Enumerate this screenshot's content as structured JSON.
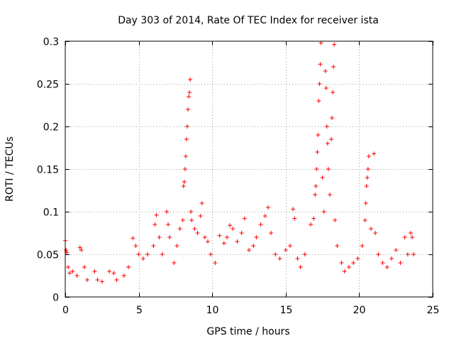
{
  "chart_data": {
    "type": "scatter",
    "title": "Day 303 of 2014, Rate Of TEC Index for receiver ista",
    "xlabel": "GPS time / hours",
    "ylabel": "ROTI / TECUs",
    "xlim": [
      0,
      25
    ],
    "ylim": [
      0,
      0.3
    ],
    "xticks": [
      0,
      5,
      10,
      15,
      20,
      25
    ],
    "xtick_labels": [
      "0",
      "5",
      "10",
      "15",
      "20",
      "25"
    ],
    "yticks": [
      0,
      0.05,
      0.1,
      0.15,
      0.2,
      0.25,
      0.3
    ],
    "ytick_labels": [
      "0",
      "0.05",
      "0.1",
      "0.15",
      "0.2",
      "0.25",
      "0.3"
    ],
    "grid": true,
    "marker": "+",
    "color": "#ff0000",
    "series": [
      {
        "name": "ROTI",
        "points": [
          [
            0.0,
            0.066
          ],
          [
            0.05,
            0.055
          ],
          [
            0.1,
            0.052
          ],
          [
            0.2,
            0.035
          ],
          [
            0.3,
            0.028
          ],
          [
            0.5,
            0.03
          ],
          [
            0.8,
            0.025
          ],
          [
            1.0,
            0.058
          ],
          [
            1.1,
            0.055
          ],
          [
            1.3,
            0.035
          ],
          [
            1.5,
            0.02
          ],
          [
            2.0,
            0.03
          ],
          [
            2.2,
            0.02
          ],
          [
            2.5,
            0.018
          ],
          [
            3.0,
            0.03
          ],
          [
            3.3,
            0.028
          ],
          [
            3.5,
            0.02
          ],
          [
            4.0,
            0.025
          ],
          [
            4.3,
            0.035
          ],
          [
            4.6,
            0.069
          ],
          [
            4.8,
            0.06
          ],
          [
            5.0,
            0.05
          ],
          [
            5.3,
            0.045
          ],
          [
            5.6,
            0.05
          ],
          [
            6.0,
            0.06
          ],
          [
            6.1,
            0.085
          ],
          [
            6.2,
            0.096
          ],
          [
            6.4,
            0.07
          ],
          [
            6.6,
            0.05
          ],
          [
            6.9,
            0.1
          ],
          [
            7.0,
            0.085
          ],
          [
            7.1,
            0.07
          ],
          [
            7.4,
            0.04
          ],
          [
            7.6,
            0.06
          ],
          [
            7.8,
            0.08
          ],
          [
            8.0,
            0.09
          ],
          [
            8.05,
            0.13
          ],
          [
            8.1,
            0.135
          ],
          [
            8.15,
            0.15
          ],
          [
            8.2,
            0.165
          ],
          [
            8.25,
            0.185
          ],
          [
            8.3,
            0.2
          ],
          [
            8.35,
            0.22
          ],
          [
            8.4,
            0.235
          ],
          [
            8.45,
            0.24
          ],
          [
            8.5,
            0.255
          ],
          [
            8.55,
            0.1
          ],
          [
            8.6,
            0.09
          ],
          [
            8.8,
            0.08
          ],
          [
            9.0,
            0.075
          ],
          [
            9.2,
            0.095
          ],
          [
            9.3,
            0.11
          ],
          [
            9.5,
            0.07
          ],
          [
            9.7,
            0.065
          ],
          [
            9.9,
            0.05
          ],
          [
            10.2,
            0.04
          ],
          [
            10.5,
            0.072
          ],
          [
            10.8,
            0.063
          ],
          [
            11.0,
            0.07
          ],
          [
            11.2,
            0.084
          ],
          [
            11.4,
            0.08
          ],
          [
            11.7,
            0.065
          ],
          [
            12.0,
            0.075
          ],
          [
            12.2,
            0.092
          ],
          [
            12.5,
            0.055
          ],
          [
            12.8,
            0.06
          ],
          [
            13.0,
            0.07
          ],
          [
            13.3,
            0.085
          ],
          [
            13.6,
            0.095
          ],
          [
            13.8,
            0.105
          ],
          [
            14.0,
            0.075
          ],
          [
            14.3,
            0.05
          ],
          [
            14.6,
            0.045
          ],
          [
            15.0,
            0.055
          ],
          [
            15.3,
            0.06
          ],
          [
            15.5,
            0.103
          ],
          [
            15.6,
            0.092
          ],
          [
            15.8,
            0.045
          ],
          [
            16.0,
            0.035
          ],
          [
            16.3,
            0.05
          ],
          [
            16.7,
            0.085
          ],
          [
            16.9,
            0.092
          ],
          [
            17.0,
            0.12
          ],
          [
            17.05,
            0.13
          ],
          [
            17.1,
            0.15
          ],
          [
            17.15,
            0.17
          ],
          [
            17.2,
            0.19
          ],
          [
            17.25,
            0.23
          ],
          [
            17.3,
            0.25
          ],
          [
            17.35,
            0.273
          ],
          [
            17.4,
            0.298
          ],
          [
            17.5,
            0.14
          ],
          [
            17.6,
            0.1
          ],
          [
            17.7,
            0.265
          ],
          [
            17.75,
            0.245
          ],
          [
            17.8,
            0.2
          ],
          [
            17.85,
            0.18
          ],
          [
            17.9,
            0.15
          ],
          [
            18.0,
            0.12
          ],
          [
            18.1,
            0.185
          ],
          [
            18.15,
            0.21
          ],
          [
            18.2,
            0.24
          ],
          [
            18.25,
            0.27
          ],
          [
            18.3,
            0.296
          ],
          [
            18.35,
            0.09
          ],
          [
            18.5,
            0.06
          ],
          [
            18.8,
            0.04
          ],
          [
            19.0,
            0.03
          ],
          [
            19.3,
            0.035
          ],
          [
            19.6,
            0.04
          ],
          [
            19.9,
            0.045
          ],
          [
            20.2,
            0.06
          ],
          [
            20.4,
            0.09
          ],
          [
            20.45,
            0.11
          ],
          [
            20.5,
            0.13
          ],
          [
            20.55,
            0.14
          ],
          [
            20.6,
            0.15
          ],
          [
            20.65,
            0.165
          ],
          [
            20.8,
            0.08
          ],
          [
            21.0,
            0.168
          ],
          [
            21.1,
            0.075
          ],
          [
            21.3,
            0.05
          ],
          [
            21.6,
            0.04
          ],
          [
            21.9,
            0.035
          ],
          [
            22.2,
            0.045
          ],
          [
            22.5,
            0.055
          ],
          [
            22.8,
            0.04
          ],
          [
            23.1,
            0.07
          ],
          [
            23.3,
            0.05
          ],
          [
            23.5,
            0.075
          ],
          [
            23.6,
            0.07
          ],
          [
            23.7,
            0.05
          ]
        ]
      }
    ]
  },
  "page": {
    "title": "Day 303 of 2014, Rate Of TEC Index for receiver ista",
    "xlabel": "GPS time / hours",
    "ylabel": "ROTI / TECUs"
  }
}
